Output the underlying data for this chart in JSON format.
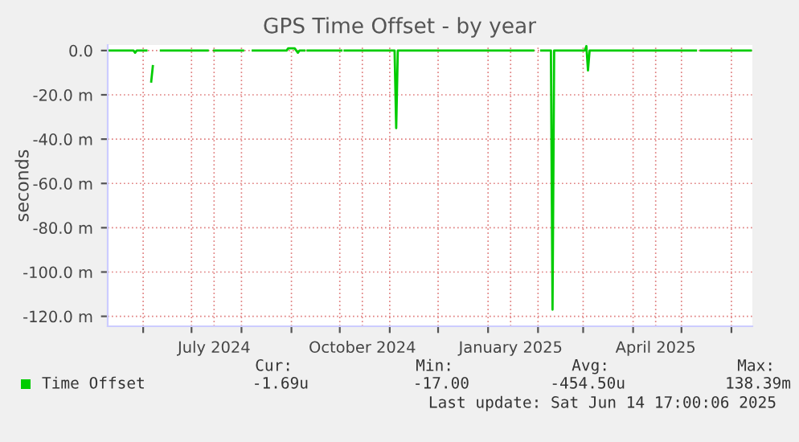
{
  "chart_data": {
    "type": "line",
    "title": "GPS Time Offset - by year",
    "ylabel": "seconds",
    "x": [
      "2024-05-10",
      "2024-05-26",
      "2024-05-27",
      "2024-05-28",
      "2024-06-03",
      "2024-06-04",
      "2024-06-06",
      "2024-06-07",
      "2024-06-09",
      "2024-06-12",
      "2024-07-11",
      "2024-07-12",
      "2024-07-15",
      "2024-08-02",
      "2024-08-04",
      "2024-08-08",
      "2024-08-29",
      "2024-08-30",
      "2024-09-03",
      "2024-09-05",
      "2024-09-06",
      "2024-09-09",
      "2024-09-10",
      "2024-09-11",
      "2024-10-02",
      "2024-10-03",
      "2024-10-04",
      "2024-11-04",
      "2024-11-05",
      "2024-11-06",
      "2025-01-29",
      "2025-01-31",
      "2025-02-03",
      "2025-02-09",
      "2025-02-10",
      "2025-02-11",
      "2025-03-02",
      "2025-03-03",
      "2025-03-04",
      "2025-03-05",
      "2025-05-10",
      "2025-05-12",
      "2025-05-13",
      "2025-06-13"
    ],
    "series": [
      {
        "name": "Time Offset",
        "color": "#00cc00",
        "values": [
          0,
          0,
          -1,
          0,
          0,
          null,
          -14,
          -7,
          null,
          0,
          0,
          null,
          0,
          0,
          null,
          0,
          0,
          1,
          1,
          -1,
          0,
          0,
          null,
          0,
          0,
          null,
          0,
          0,
          -35,
          0,
          0,
          null,
          0,
          0,
          -117,
          0,
          0,
          2,
          -9,
          0,
          0,
          null,
          0,
          0
        ]
      }
    ],
    "xlim": [
      "2024-05-10",
      "2025-06-14"
    ],
    "xticks": [
      {
        "value": "2024-06-01",
        "label": null
      },
      {
        "value": "2024-07-01",
        "label": null
      },
      {
        "value": "2024-07-15",
        "label": "July 2024"
      },
      {
        "value": "2024-08-01",
        "label": null
      },
      {
        "value": "2024-09-01",
        "label": null
      },
      {
        "value": "2024-10-01",
        "label": null
      },
      {
        "value": "2024-10-15",
        "label": "October 2024"
      },
      {
        "value": "2024-11-01",
        "label": null
      },
      {
        "value": "2024-12-01",
        "label": null
      },
      {
        "value": "2025-01-01",
        "label": null
      },
      {
        "value": "2025-01-15",
        "label": "January 2025"
      },
      {
        "value": "2025-02-01",
        "label": null
      },
      {
        "value": "2025-03-01",
        "label": null
      },
      {
        "value": "2025-04-01",
        "label": null
      },
      {
        "value": "2025-04-15",
        "label": "April 2025"
      },
      {
        "value": "2025-05-01",
        "label": null
      },
      {
        "value": "2025-06-01",
        "label": null
      }
    ],
    "ylim": [
      -124.5,
      2.5
    ],
    "yticks": [
      {
        "value": 0,
        "label": "0.0"
      },
      {
        "value": -20,
        "label": "-20.0 m"
      },
      {
        "value": -40,
        "label": "-40.0 m"
      },
      {
        "value": -60,
        "label": "-60.0 m"
      },
      {
        "value": -80,
        "label": "-80.0 m"
      },
      {
        "value": -100,
        "label": "-100.0 m"
      },
      {
        "value": -120,
        "label": "-120.0 m"
      }
    ],
    "grid": true,
    "legend": "bottom",
    "annotations": [
      "Cur:",
      "Min:",
      "Avg:",
      "Max:",
      "-1.69u",
      "-17.00",
      "-454.50u",
      "138.39m",
      "Last update: Sat Jun 14 17:00:06 2025"
    ]
  }
}
